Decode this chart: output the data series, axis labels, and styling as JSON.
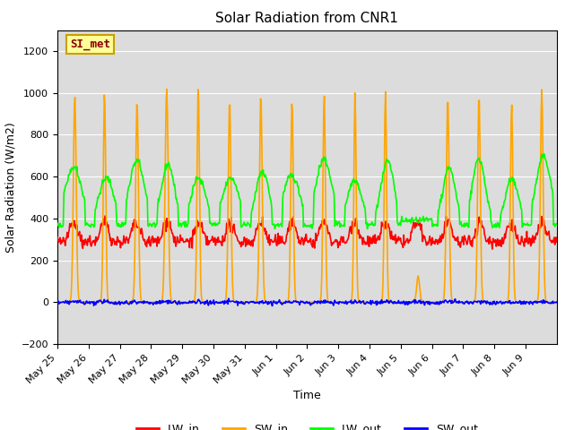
{
  "title": "Solar Radiation from CNR1",
  "xlabel": "Time",
  "ylabel": "Solar Radiation (W/m2)",
  "ylim": [
    -200,
    1300
  ],
  "yticks": [
    -200,
    0,
    200,
    400,
    600,
    800,
    1000,
    1200
  ],
  "x_tick_labels": [
    "May 25",
    "May 26",
    "May 27",
    "May 28",
    "May 29",
    "May 30",
    "May 31",
    "Jun 1",
    "Jun 2",
    "Jun 3",
    "Jun 4",
    "Jun 5",
    "Jun 6",
    "Jun 7",
    "Jun 8",
    "Jun 9"
  ],
  "annotation_label": "SI_met",
  "annotation_color": "#8B0000",
  "annotation_bg": "#FFFF99",
  "annotation_edge": "#C8A000",
  "plot_bg": "#DCDCDC",
  "fig_bg": "#FFFFFF",
  "grid_color": "#FFFFFF",
  "colors": {
    "LW_in": "#FF0000",
    "SW_in": "#FFA500",
    "LW_out": "#00FF00",
    "SW_out": "#0000FF"
  },
  "linewidth": 1.2,
  "n_days": 16,
  "points_per_day": 48,
  "random_seed": 42
}
